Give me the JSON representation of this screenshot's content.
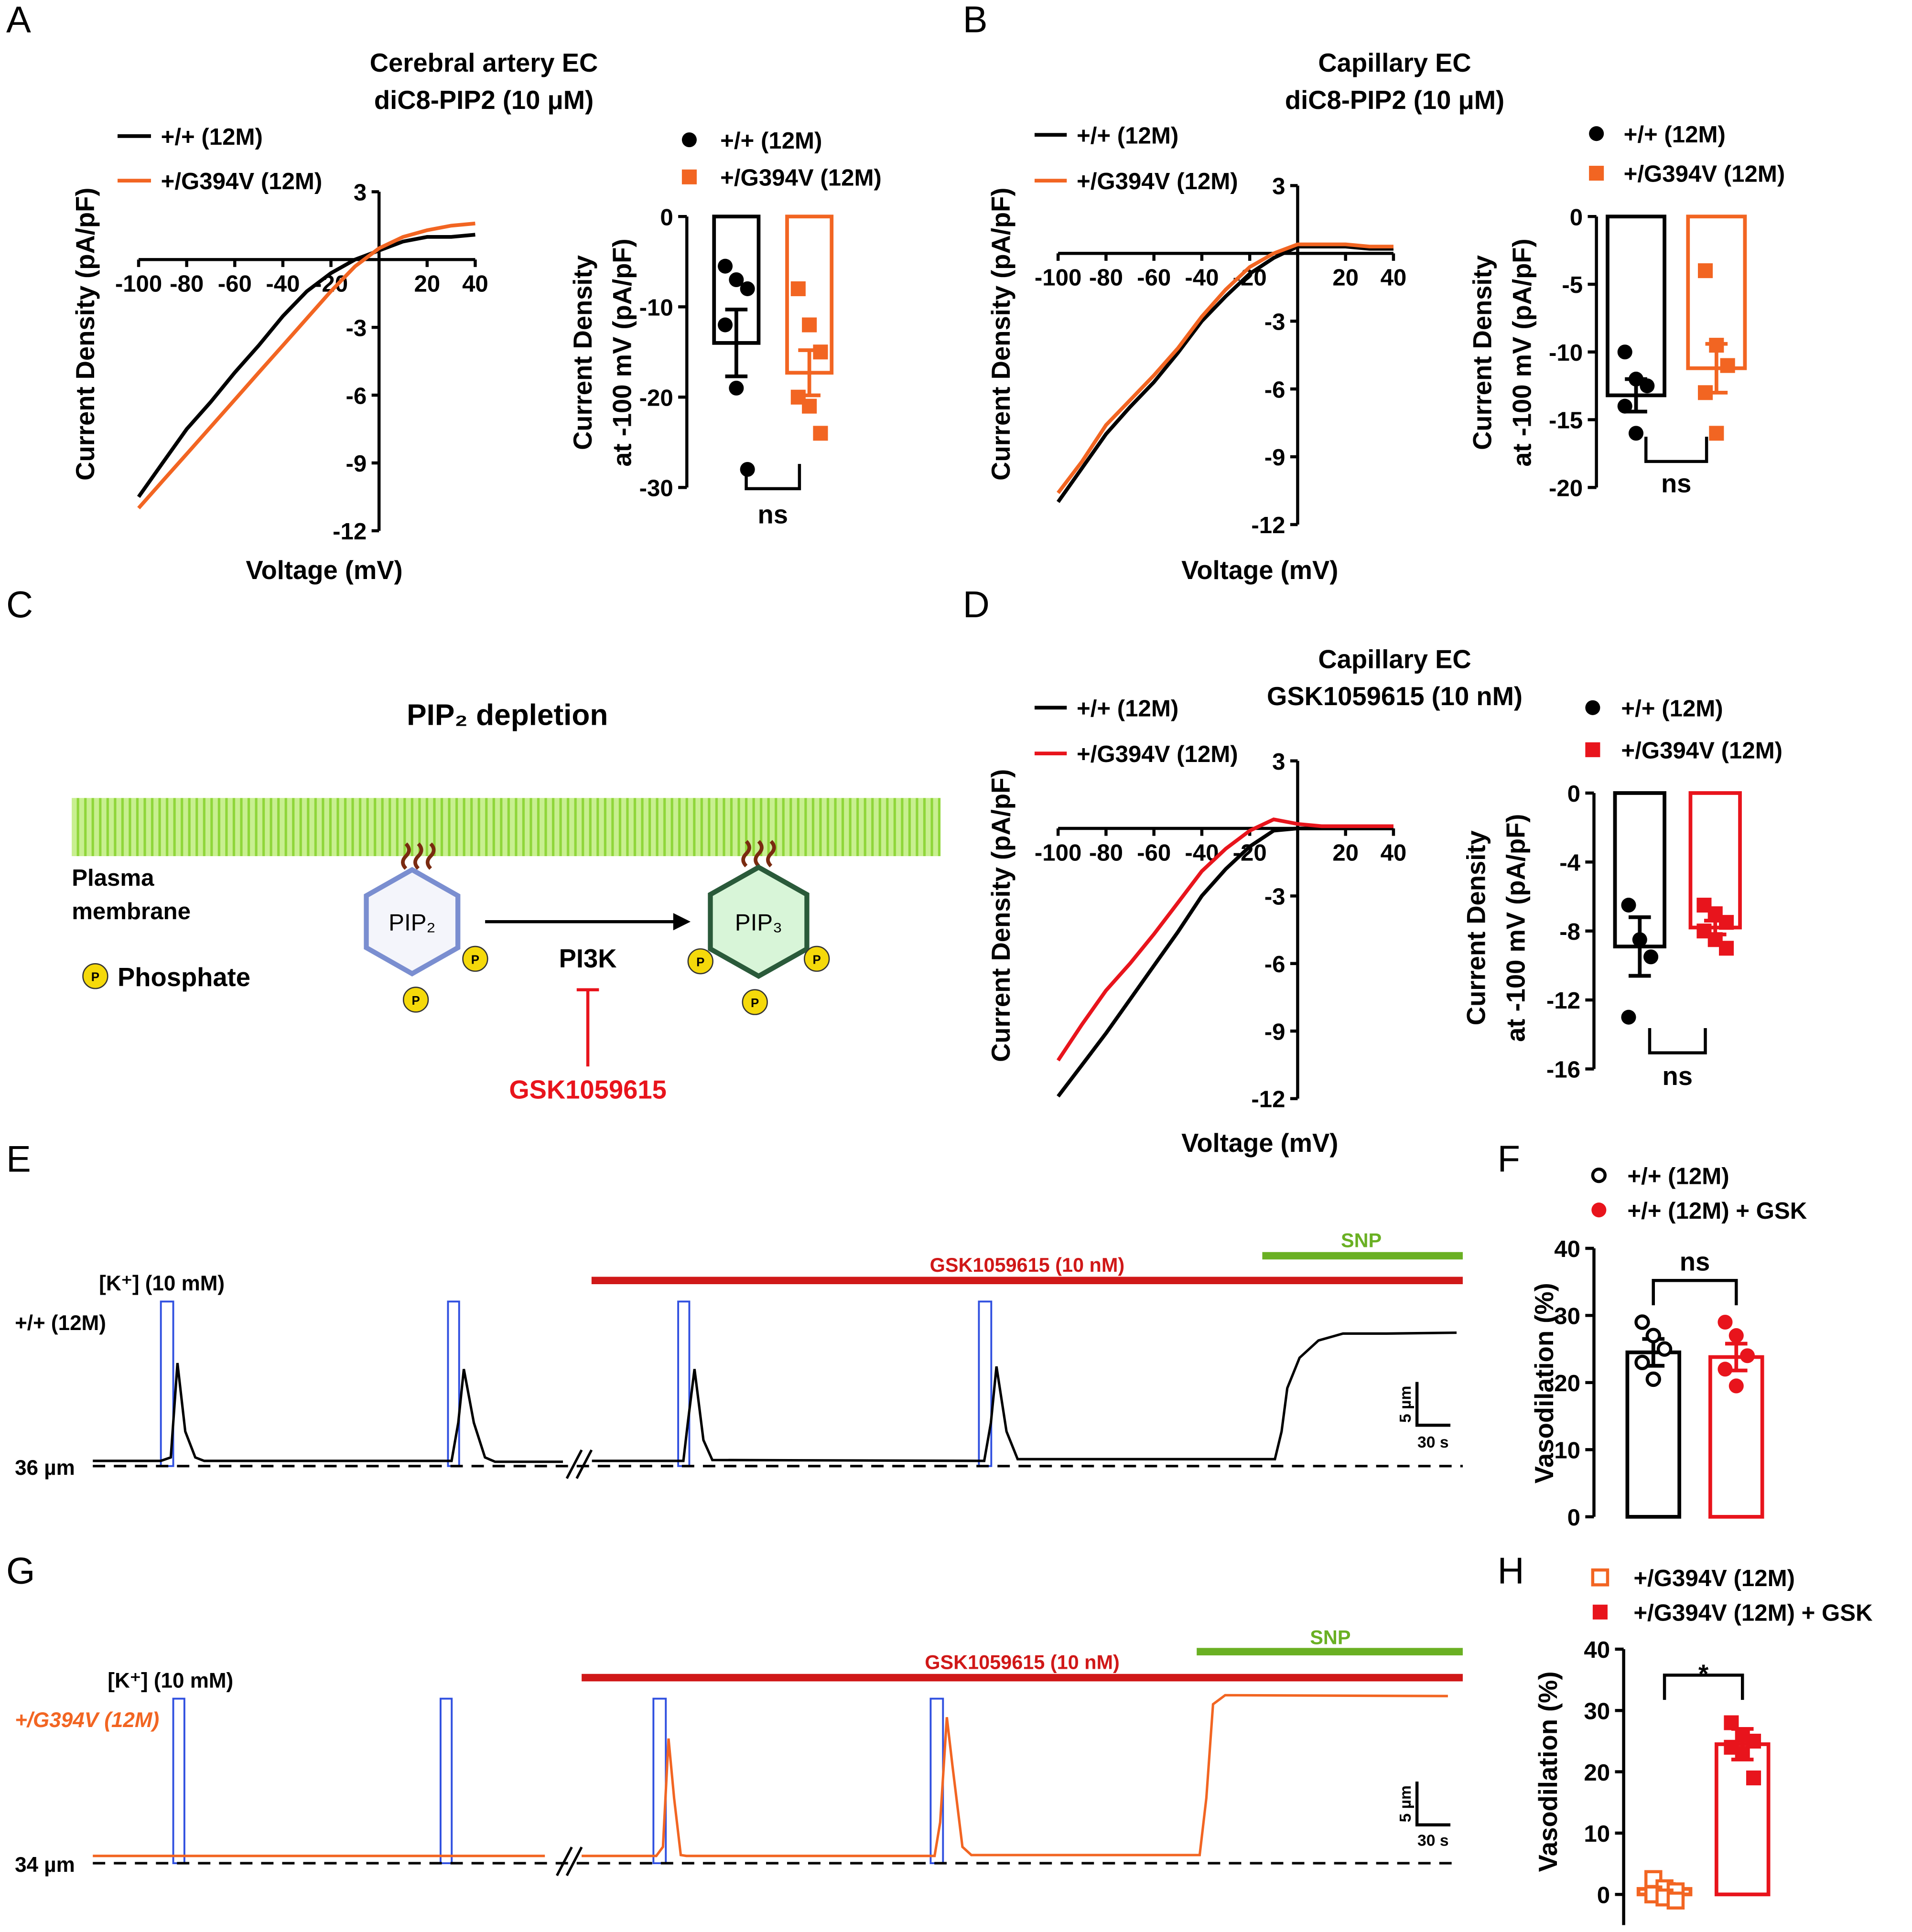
{
  "panel_labels": [
    "A",
    "B",
    "C",
    "D",
    "E",
    "F",
    "G",
    "H"
  ],
  "diagram": {
    "title": "PIP₂ depletion",
    "membrane_label": [
      "Plasma",
      "membrane"
    ],
    "phosphate_symbol": "P",
    "phosphate_label": "Phosphate",
    "substrate": "PIP₂",
    "enzyme": "PI3K",
    "product": "PIP₃",
    "inhibitor": "GSK1059615"
  },
  "chart_data": [
    {
      "type": "line",
      "title": "Cerebral artery EC",
      "subtitle": "diC8-PIP2 (10 μM)",
      "x_label": "Voltage (mV)",
      "y_label": "Current Density (pA/pF)",
      "x": [
        -100,
        -90,
        -80,
        -70,
        -60,
        -50,
        -40,
        -30,
        -20,
        -10,
        0,
        10,
        20,
        30,
        40
      ],
      "series": [
        {
          "name": "+/+ (12M)",
          "color": "#000000",
          "values": [
            -10.5,
            -9,
            -7.5,
            -6.3,
            -5,
            -3.8,
            -2.5,
            -1.4,
            -0.6,
            0,
            0.4,
            0.8,
            1,
            1,
            1.1
          ]
        },
        {
          "name": "+/G394V (12M)",
          "color": "#f26522",
          "values": [
            -11,
            -9.8,
            -8.6,
            -7.4,
            -6.2,
            -5,
            -3.8,
            -2.6,
            -1.4,
            -0.3,
            0.5,
            1,
            1.3,
            1.5,
            1.6
          ]
        }
      ],
      "xlim": [
        -100,
        40
      ],
      "ylim": [
        -12,
        3
      ],
      "xticks": [
        -100,
        -80,
        -60,
        -40,
        -20,
        20,
        40
      ],
      "yticks": [
        3,
        -3,
        -6,
        -9,
        -12
      ]
    },
    {
      "type": "bar",
      "y_label": [
        "Current Density",
        "at -100 mV (pA/pF)"
      ],
      "series": [
        {
          "name": "+/+  (12M)",
          "color": "#000000",
          "marker": "circle",
          "values": [
            -14
          ],
          "errors": [
            3.7
          ],
          "points": [
            -5.5,
            -7,
            -8,
            -12,
            -19,
            -28
          ]
        },
        {
          "name": "+/G394V (12M)",
          "color": "#f26522",
          "marker": "square",
          "values": [
            -17.3
          ],
          "errors": [
            2.5
          ],
          "points": [
            -8,
            -12,
            -15,
            -20,
            -21,
            -24
          ]
        }
      ],
      "ylim": [
        -30,
        0
      ],
      "yticks": [
        0,
        -10,
        -20,
        -30
      ],
      "annotation": "ns"
    },
    {
      "type": "line",
      "title": "Capillary EC",
      "subtitle": "diC8-PIP2 (10 μM)",
      "x_label": "Voltage (mV)",
      "y_label": "Current Density (pA/pF)",
      "x": [
        -100,
        -90,
        -80,
        -70,
        -60,
        -50,
        -40,
        -30,
        -20,
        -10,
        0,
        10,
        20,
        30,
        40
      ],
      "series": [
        {
          "name": "+/+  (12M)",
          "color": "#000000",
          "values": [
            -11,
            -9.5,
            -8,
            -6.8,
            -5.7,
            -4.4,
            -3,
            -1.9,
            -0.9,
            -0.2,
            0.3,
            0.3,
            0.3,
            0.2,
            0.2
          ]
        },
        {
          "name": "+/G394V (12M)",
          "color": "#f26522",
          "values": [
            -10.6,
            -9.2,
            -7.6,
            -6.5,
            -5.4,
            -4.2,
            -2.8,
            -1.6,
            -0.6,
            0,
            0.4,
            0.4,
            0.4,
            0.3,
            0.3
          ]
        }
      ],
      "xlim": [
        -100,
        40
      ],
      "ylim": [
        -12,
        3
      ],
      "xticks": [
        -100,
        -80,
        -60,
        -40,
        -20,
        20,
        40
      ],
      "yticks": [
        3,
        -3,
        -6,
        -9,
        -12
      ]
    },
    {
      "type": "bar",
      "y_label": [
        "Current Density",
        "at -100 mV (pA/pF)"
      ],
      "series": [
        {
          "name": "+/+  (12M)",
          "color": "#000000",
          "marker": "circle",
          "values": [
            -13.2
          ],
          "errors": [
            1.2
          ],
          "points": [
            -10,
            -12,
            -12.5,
            -14,
            -16
          ]
        },
        {
          "name": "+/G394V (12M)",
          "color": "#f26522",
          "marker": "square",
          "values": [
            -11.2
          ],
          "errors": [
            1.8
          ],
          "points": [
            -4,
            -9.5,
            -11,
            -13,
            -16
          ]
        }
      ],
      "ylim": [
        -20,
        0
      ],
      "yticks": [
        0,
        -5,
        -10,
        -15,
        -20
      ],
      "annotation": "ns"
    },
    {
      "type": "line",
      "title": "Capillary EC",
      "subtitle": "GSK1059615 (10 nM)",
      "x_label": "Voltage (mV)",
      "y_label": "Current Density (pA/pF)",
      "x": [
        -100,
        -90,
        -80,
        -70,
        -60,
        -50,
        -40,
        -30,
        -20,
        -10,
        0,
        10,
        20,
        30,
        40
      ],
      "series": [
        {
          "name": "+/+  (12M)",
          "color": "#000000",
          "values": [
            -11.9,
            -10.5,
            -9.1,
            -7.6,
            -6.1,
            -4.6,
            -3,
            -1.8,
            -0.8,
            -0.1,
            0,
            0,
            0,
            0,
            0
          ]
        },
        {
          "name": "+/G394V (12M)",
          "color": "#e8141c",
          "values": [
            -10.3,
            -8.7,
            -7.2,
            -6,
            -4.7,
            -3.3,
            -1.9,
            -0.9,
            -0.1,
            0.4,
            0.2,
            0.1,
            0.1,
            0.1,
            0.1
          ]
        }
      ],
      "xlim": [
        -100,
        40
      ],
      "ylim": [
        -12,
        3
      ],
      "xticks": [
        -100,
        -80,
        -60,
        -40,
        -20,
        20,
        40
      ],
      "yticks": [
        3,
        -3,
        -6,
        -9,
        -12
      ]
    },
    {
      "type": "bar",
      "y_label": [
        "Current Density",
        "at -100 mV (pA/pF)"
      ],
      "series": [
        {
          "name": "+/+  (12M)",
          "color": "#000000",
          "marker": "circle",
          "values": [
            -8.9
          ],
          "errors": [
            1.7
          ],
          "points": [
            -6.5,
            -8.5,
            -9.5,
            -13
          ]
        },
        {
          "name": "+/G394V (12M)",
          "color": "#e8141c",
          "marker": "square",
          "values": [
            -7.8
          ],
          "errors": [
            0.4
          ],
          "points": [
            -6.5,
            -7,
            -7.5,
            -8,
            -8.5,
            -9
          ]
        }
      ],
      "ylim": [
        -16,
        0
      ],
      "yticks": [
        0,
        -4,
        -8,
        -12,
        -16
      ],
      "annotation": "ns"
    },
    {
      "type": "trace",
      "row_label": "+/+ (12M)",
      "stimulus_label": "[K⁺] (10 mM)",
      "drug_label": "GSK1059615 (10 nM)",
      "snp_label": "SNP",
      "baseline_label": "36 µm",
      "scale_labels": [
        "5 µm",
        "30 s"
      ],
      "x": [
        0,
        61,
        70,
        76,
        83,
        92,
        100,
        322,
        328,
        333,
        342,
        352,
        361,
        422,
        433,
        448,
        530,
        534,
        540,
        548,
        556,
        800,
        806,
        811,
        820,
        830,
        1061,
        1067,
        1072,
        1083,
        1100,
        1122,
        1161,
        1224
      ],
      "series": [
        {
          "color": "#000000",
          "values": [
            0.6,
            0.6,
            1,
            11.9,
            4,
            1,
            0.6,
            0.6,
            5,
            11.2,
            5,
            1,
            0.5,
            0.5,
            null,
            0.6,
            0.6,
            5,
            11.2,
            3,
            0.7,
            0.6,
            5,
            11.5,
            4,
            0.8,
            0.8,
            4,
            9,
            12.5,
            14.5,
            15.3,
            15.3,
            15.4
          ]
        }
      ],
      "xlim": [
        0,
        1224
      ],
      "ylim": [
        0,
        20
      ]
    },
    {
      "type": "bar",
      "y_label": [
        "Vasodilation (%)"
      ],
      "series": [
        {
          "name": "+/+ (12M)",
          "color": "#000000",
          "marker": "open-circle",
          "values": [
            24.5
          ],
          "errors": [
            2
          ],
          "points": [
            29,
            27,
            25,
            23,
            20.5
          ]
        },
        {
          "name": "+/+ (12M) + GSK",
          "color": "#e8141c",
          "marker": "circle",
          "values": [
            23.8
          ],
          "errors": [
            2
          ],
          "points": [
            29,
            27,
            24,
            22,
            19.5
          ]
        }
      ],
      "ylim": [
        0,
        40
      ],
      "yticks": [
        0,
        10,
        20,
        30,
        40
      ],
      "annotation": "ns"
    },
    {
      "type": "trace",
      "row_label": "+/G394V (12M)",
      "stimulus_label": "[K⁺] (10 mM)",
      "drug_label": "GSK1059615 (10 nM)",
      "snp_label": "SNP",
      "baseline_label": "34 µm",
      "scale_labels": [
        "5 µm",
        "30 s"
      ],
      "x": [
        0,
        406,
        422,
        439,
        506,
        512,
        517,
        522,
        528,
        533,
        756,
        761,
        767,
        772,
        781,
        789,
        994,
        1000,
        1006,
        1017,
        1217
      ],
      "series": [
        {
          "color": "#f26522",
          "values": [
            0.9,
            0.9,
            null,
            0.9,
            0.9,
            2,
            15.3,
            8,
            1,
            0.9,
            0.9,
            5,
            17.9,
            12,
            2,
            1,
            1,
            8,
            19.5,
            20.6,
            20.5
          ]
        }
      ],
      "xlim": [
        0,
        1217
      ],
      "ylim": [
        0,
        22
      ]
    },
    {
      "type": "bar",
      "y_label": [
        "Vasodilation (%)"
      ],
      "series": [
        {
          "name": "+/G394V (12M)",
          "color": "#f26522",
          "marker": "open-square",
          "values": [
            0.9
          ],
          "errors": [
            0.8
          ],
          "points": [
            2.5,
            1,
            0.5,
            0,
            -0.5,
            -1
          ]
        },
        {
          "name": "+/G394V (12M) + GSK",
          "color": "#e8141c",
          "marker": "square",
          "values": [
            24.5
          ],
          "errors": [
            2.5
          ],
          "points": [
            28,
            26,
            25,
            24,
            23,
            19
          ]
        }
      ],
      "ylim": [
        -5,
        40
      ],
      "yticks": [
        0,
        10,
        20,
        30,
        40
      ],
      "annotation": "*"
    }
  ]
}
